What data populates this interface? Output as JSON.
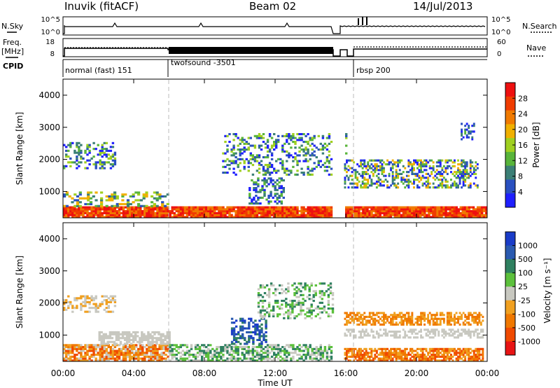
{
  "header": {
    "station": "Inuvik (fitACF)",
    "beam": "Beam 02",
    "date": "14/Jul/2013"
  },
  "summary_panels": {
    "nsky_label": "N.Sky",
    "nsky_ticks": [
      "10^5",
      "10^0"
    ],
    "nsearch_label": "N.Search",
    "nsearch_ticks": [
      "10^5",
      "10^0"
    ],
    "freq_label": "Freq.",
    "freq_unit": "[MHz]",
    "freq_ticks": [
      "18",
      "8"
    ],
    "nave_label": "Nave",
    "nave_ticks": [
      "60",
      "0"
    ],
    "cpid_label": "CPID",
    "programs": [
      {
        "name": "normal (fast) 151",
        "start_hour": 0
      },
      {
        "name": "twofsound -3501",
        "start_hour": 6
      },
      {
        "name": "rbsp 200",
        "start_hour": 16.6
      }
    ]
  },
  "colors": {
    "power": [
      "#1f1fff",
      "#2a50c0",
      "#3b7f76",
      "#58b43a",
      "#a0d020",
      "#f0b000",
      "#f07a00",
      "#f03c00",
      "#ee1010"
    ],
    "velocity": [
      "#1a3cc8",
      "#2a5ab0",
      "#2f8060",
      "#5cc03c",
      "#c8c8c0",
      "#f0a020",
      "#f07800",
      "#f04a00",
      "#e81414"
    ]
  },
  "chart_data": [
    {
      "type": "heatmap",
      "title": "Power",
      "xlabel": "Time UT",
      "ylabel": "Slant Range [km]",
      "x_ticks": [
        "00:00",
        "04:00",
        "08:00",
        "12:00",
        "16:00",
        "20:00",
        "00:00"
      ],
      "y_ticks": [
        "1000",
        "2000",
        "3000",
        "4000"
      ],
      "xlim": [
        0,
        24
      ],
      "ylim": [
        180,
        4500
      ],
      "colorbar_label": "Power [dB]",
      "colorbar_ticks": [
        "4",
        "8",
        "12",
        "16",
        "20",
        "24",
        "28"
      ],
      "colorbar_range": [
        0,
        30
      ]
    },
    {
      "type": "heatmap",
      "xlabel": "Time UT",
      "ylabel": "Slant Range [km]",
      "x_ticks": [
        "00:00",
        "04:00",
        "08:00",
        "12:00",
        "16:00",
        "20:00",
        "00:00"
      ],
      "y_ticks": [
        "1000",
        "2000",
        "3000",
        "4000"
      ],
      "xlim": [
        0,
        24
      ],
      "ylim": [
        180,
        4500
      ],
      "colorbar_label": "Velocity [m s⁻¹]",
      "colorbar_ticks": [
        "1000",
        "500",
        "100",
        "25",
        "-25",
        "-100",
        "-500",
        "-1000"
      ]
    }
  ]
}
